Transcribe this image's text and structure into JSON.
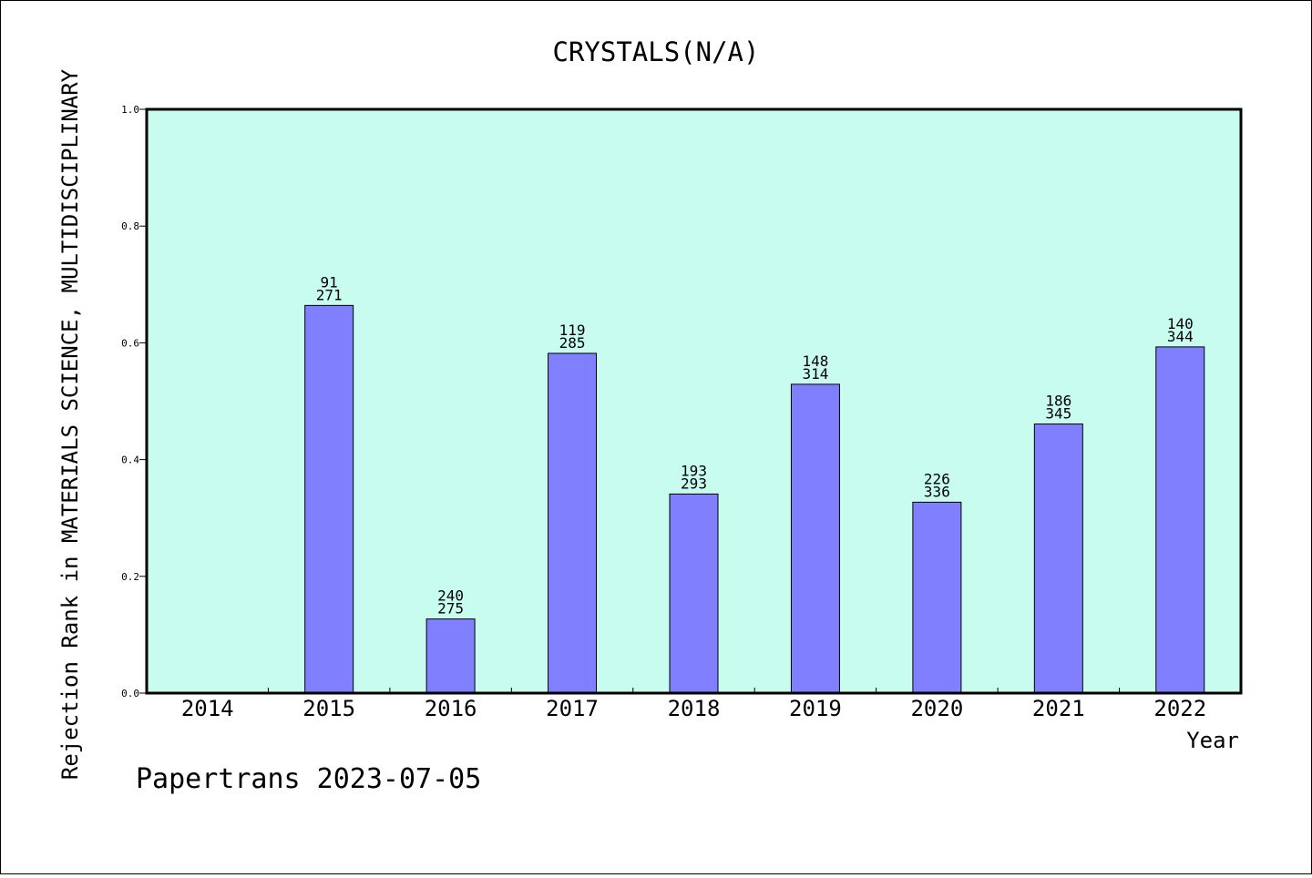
{
  "chart_data": {
    "type": "bar",
    "title": "CRYSTALS(N/A)",
    "xlabel": "Year",
    "ylabel": "Rejection Rank in MATERIALS SCIENCE, MULTIDISCIPLINARY",
    "categories": [
      "2014",
      "2015",
      "2016",
      "2017",
      "2018",
      "2019",
      "2020",
      "2021",
      "2022"
    ],
    "values": [
      null,
      0.664,
      0.127,
      0.582,
      0.341,
      0.529,
      0.327,
      0.461,
      0.593
    ],
    "rank_labels": [
      null,
      "91",
      "240",
      "119",
      "193",
      "148",
      "226",
      "186",
      "140"
    ],
    "total_labels": [
      null,
      "271",
      "275",
      "285",
      "293",
      "314",
      "336",
      "345",
      "344"
    ],
    "ylim": [
      0,
      1.0
    ],
    "yticks": [
      "0.0",
      "0.2",
      "0.4",
      "0.6",
      "0.8",
      "1.0"
    ],
    "grid": false,
    "colors": {
      "plot_background": "#c8fcee",
      "bar_fill": "#8080ff",
      "bar_stroke": "#000000"
    }
  },
  "footer": {
    "credit": "Papertrans 2023-07-05"
  }
}
